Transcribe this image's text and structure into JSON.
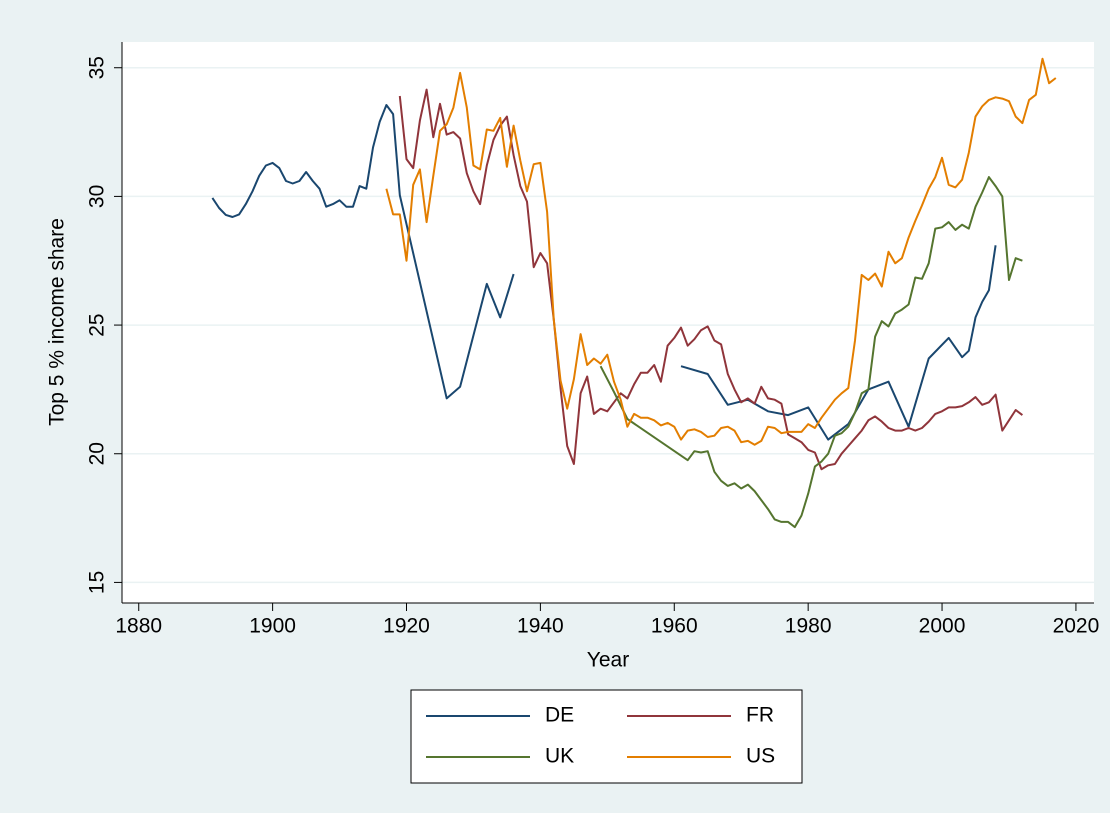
{
  "chart_data": {
    "type": "line",
    "x_label": "Year",
    "y_label": "Top 5 % income share",
    "xlim": [
      1877.5,
      2022.7
    ],
    "xticks": [
      1880,
      1900,
      1920,
      1940,
      1960,
      1980,
      2000,
      2020
    ],
    "ylim": [
      14.2,
      36.0
    ],
    "yticks": [
      15,
      20,
      25,
      30,
      35
    ],
    "grid": true,
    "legend": "bottom",
    "series": [
      {
        "name": "DE",
        "color": "#1a476f",
        "x": [
          1891,
          1892,
          1893,
          1894,
          1895,
          1896,
          1897,
          1898,
          1899,
          1900,
          1901,
          1902,
          1903,
          1904,
          1905,
          1906,
          1907,
          1908,
          1909,
          1910,
          1911,
          1912,
          1913,
          1914,
          1915,
          1916,
          1917,
          1918,
          1919,
          1926,
          1928,
          1932,
          1934,
          1936,
          1937,
          1961,
          1965,
          1968,
          1971,
          1974,
          1977,
          1980,
          1983,
          1986,
          1989,
          1992,
          1995,
          1998,
          2001,
          2003,
          2004,
          2005,
          2006,
          2007,
          2008
        ],
        "values": [
          29.94,
          29.55,
          29.28,
          29.2,
          29.3,
          29.7,
          30.2,
          30.8,
          31.2,
          31.3,
          31.1,
          30.6,
          30.5,
          30.6,
          30.95,
          30.6,
          30.3,
          29.6,
          29.7,
          29.85,
          29.6,
          29.6,
          30.4,
          30.3,
          31.9,
          32.9,
          33.55,
          33.2,
          30.05,
          22.15,
          22.6,
          26.6,
          25.3,
          26.98,
          null,
          23.4,
          23.1,
          21.9,
          22.1,
          21.65,
          21.5,
          21.8,
          20.55,
          21.15,
          22.5,
          22.8,
          21.05,
          23.7,
          24.5,
          23.75,
          24.0,
          25.3,
          25.9,
          26.35,
          28.1
        ]
      },
      {
        "name": "FR",
        "color": "#90353b",
        "x": [
          1919,
          1920,
          1921,
          1922,
          1923,
          1924,
          1925,
          1926,
          1927,
          1928,
          1929,
          1930,
          1931,
          1932,
          1933,
          1934,
          1935,
          1936,
          1937,
          1938,
          1939,
          1940,
          1941,
          1942,
          1943,
          1944,
          1945,
          1946,
          1947,
          1948,
          1949,
          1950,
          1951,
          1952,
          1953,
          1954,
          1955,
          1956,
          1957,
          1958,
          1959,
          1960,
          1961,
          1962,
          1963,
          1964,
          1965,
          1966,
          1967,
          1968,
          1969,
          1970,
          1971,
          1972,
          1973,
          1974,
          1975,
          1976,
          1977,
          1978,
          1979,
          1980,
          1981,
          1982,
          1983,
          1984,
          1985,
          1986,
          1987,
          1988,
          1989,
          1990,
          1991,
          1992,
          1993,
          1994,
          1995,
          1996,
          1997,
          1998,
          1999,
          2000,
          2001,
          2002,
          2003,
          2004,
          2005,
          2006,
          2007,
          2008,
          2009,
          2010,
          2011,
          2012
        ],
        "values": [
          33.9,
          31.45,
          31.1,
          32.95,
          34.15,
          32.3,
          33.6,
          32.4,
          32.5,
          32.25,
          30.9,
          30.2,
          29.7,
          31.2,
          32.2,
          32.75,
          33.1,
          31.6,
          30.4,
          29.8,
          27.25,
          27.8,
          27.4,
          25.2,
          22.55,
          20.3,
          19.6,
          22.35,
          23.0,
          21.55,
          21.75,
          21.65,
          22.0,
          22.35,
          22.15,
          22.7,
          23.15,
          23.15,
          23.45,
          22.8,
          24.2,
          24.5,
          24.9,
          24.2,
          24.45,
          24.8,
          24.95,
          24.4,
          24.25,
          23.1,
          22.5,
          22.0,
          22.15,
          21.95,
          22.6,
          22.15,
          22.1,
          21.95,
          20.75,
          20.6,
          20.45,
          20.15,
          20.05,
          19.4,
          19.55,
          19.6,
          20.0,
          20.3,
          20.6,
          20.9,
          21.3,
          21.45,
          21.25,
          21.0,
          20.9,
          20.9,
          21.0,
          20.9,
          21.0,
          21.25,
          21.55,
          21.65,
          21.8,
          21.8,
          21.85,
          22.0,
          22.2,
          21.9,
          22.0,
          22.3,
          20.9,
          21.3,
          21.7,
          21.5
        ]
      },
      {
        "name": "UK",
        "color": "#55752f",
        "x": [
          1949,
          1951,
          1953,
          1962,
          1963,
          1964,
          1965,
          1966,
          1967,
          1968,
          1969,
          1970,
          1971,
          1972,
          1973,
          1974,
          1975,
          1976,
          1977,
          1978,
          1979,
          1980,
          1981,
          1982,
          1983,
          1984,
          1985,
          1986,
          1987,
          1988,
          1989,
          1990,
          1991,
          1992,
          1993,
          1994,
          1995,
          1996,
          1997,
          1998,
          1999,
          2000,
          2001,
          2002,
          2003,
          2004,
          2005,
          2006,
          2007,
          2008,
          2009,
          2010,
          2011,
          2012
        ],
        "values": [
          23.4,
          22.4,
          21.35,
          19.75,
          20.1,
          20.05,
          20.1,
          19.3,
          18.95,
          18.75,
          18.85,
          18.65,
          18.8,
          18.55,
          18.2,
          17.85,
          17.45,
          17.35,
          17.35,
          17.15,
          17.6,
          18.45,
          19.5,
          19.7,
          20.0,
          20.7,
          20.8,
          21.05,
          21.6,
          22.35,
          22.5,
          24.55,
          25.15,
          24.95,
          25.45,
          25.6,
          25.8,
          26.85,
          26.8,
          27.4,
          28.75,
          28.8,
          29.0,
          28.7,
          28.9,
          28.75,
          29.6,
          30.15,
          30.75,
          30.4,
          30.0,
          26.75,
          27.6,
          27.5
        ]
      },
      {
        "name": "US",
        "color": "#e37e00",
        "x": [
          1917,
          1918,
          1919,
          1920,
          1921,
          1922,
          1923,
          1924,
          1925,
          1926,
          1927,
          1928,
          1929,
          1930,
          1931,
          1932,
          1933,
          1934,
          1935,
          1936,
          1937,
          1938,
          1939,
          1940,
          1941,
          1942,
          1943,
          1944,
          1945,
          1946,
          1947,
          1948,
          1949,
          1950,
          1951,
          1952,
          1953,
          1954,
          1955,
          1956,
          1957,
          1958,
          1959,
          1960,
          1961,
          1962,
          1963,
          1964,
          1965,
          1966,
          1967,
          1968,
          1969,
          1970,
          1971,
          1972,
          1973,
          1974,
          1975,
          1976,
          1977,
          1978,
          1979,
          1980,
          1981,
          1982,
          1983,
          1984,
          1985,
          1986,
          1987,
          1988,
          1989,
          1990,
          1991,
          1992,
          1993,
          1994,
          1995,
          1996,
          1997,
          1998,
          1999,
          2000,
          2001,
          2002,
          2003,
          2004,
          2005,
          2006,
          2007,
          2008,
          2009,
          2010,
          2011,
          2012,
          2013,
          2014,
          2015,
          2016,
          2017
        ],
        "values": [
          30.3,
          29.3,
          29.3,
          27.5,
          30.45,
          31.05,
          29.0,
          30.8,
          32.55,
          32.8,
          33.45,
          34.8,
          33.45,
          31.2,
          31.05,
          32.6,
          32.55,
          33.05,
          31.15,
          32.75,
          31.4,
          30.2,
          31.25,
          31.3,
          29.4,
          25.2,
          22.85,
          21.75,
          22.9,
          24.65,
          23.45,
          23.7,
          23.5,
          23.85,
          22.8,
          22.1,
          21.05,
          21.55,
          21.4,
          21.4,
          21.3,
          21.1,
          21.2,
          21.05,
          20.55,
          20.9,
          20.95,
          20.85,
          20.65,
          20.7,
          21.0,
          21.05,
          20.9,
          20.45,
          20.5,
          20.35,
          20.5,
          21.05,
          21.0,
          20.8,
          20.85,
          20.85,
          20.85,
          21.15,
          21.0,
          21.4,
          21.75,
          22.1,
          22.35,
          22.55,
          24.4,
          26.95,
          26.75,
          27.0,
          26.5,
          27.85,
          27.4,
          27.6,
          28.4,
          29.05,
          29.65,
          30.3,
          30.75,
          31.5,
          30.45,
          30.35,
          30.65,
          31.7,
          33.1,
          33.5,
          33.75,
          33.85,
          33.8,
          33.7,
          33.1,
          32.85,
          33.75,
          33.95,
          35.35,
          34.4,
          34.6
        ]
      }
    ]
  }
}
